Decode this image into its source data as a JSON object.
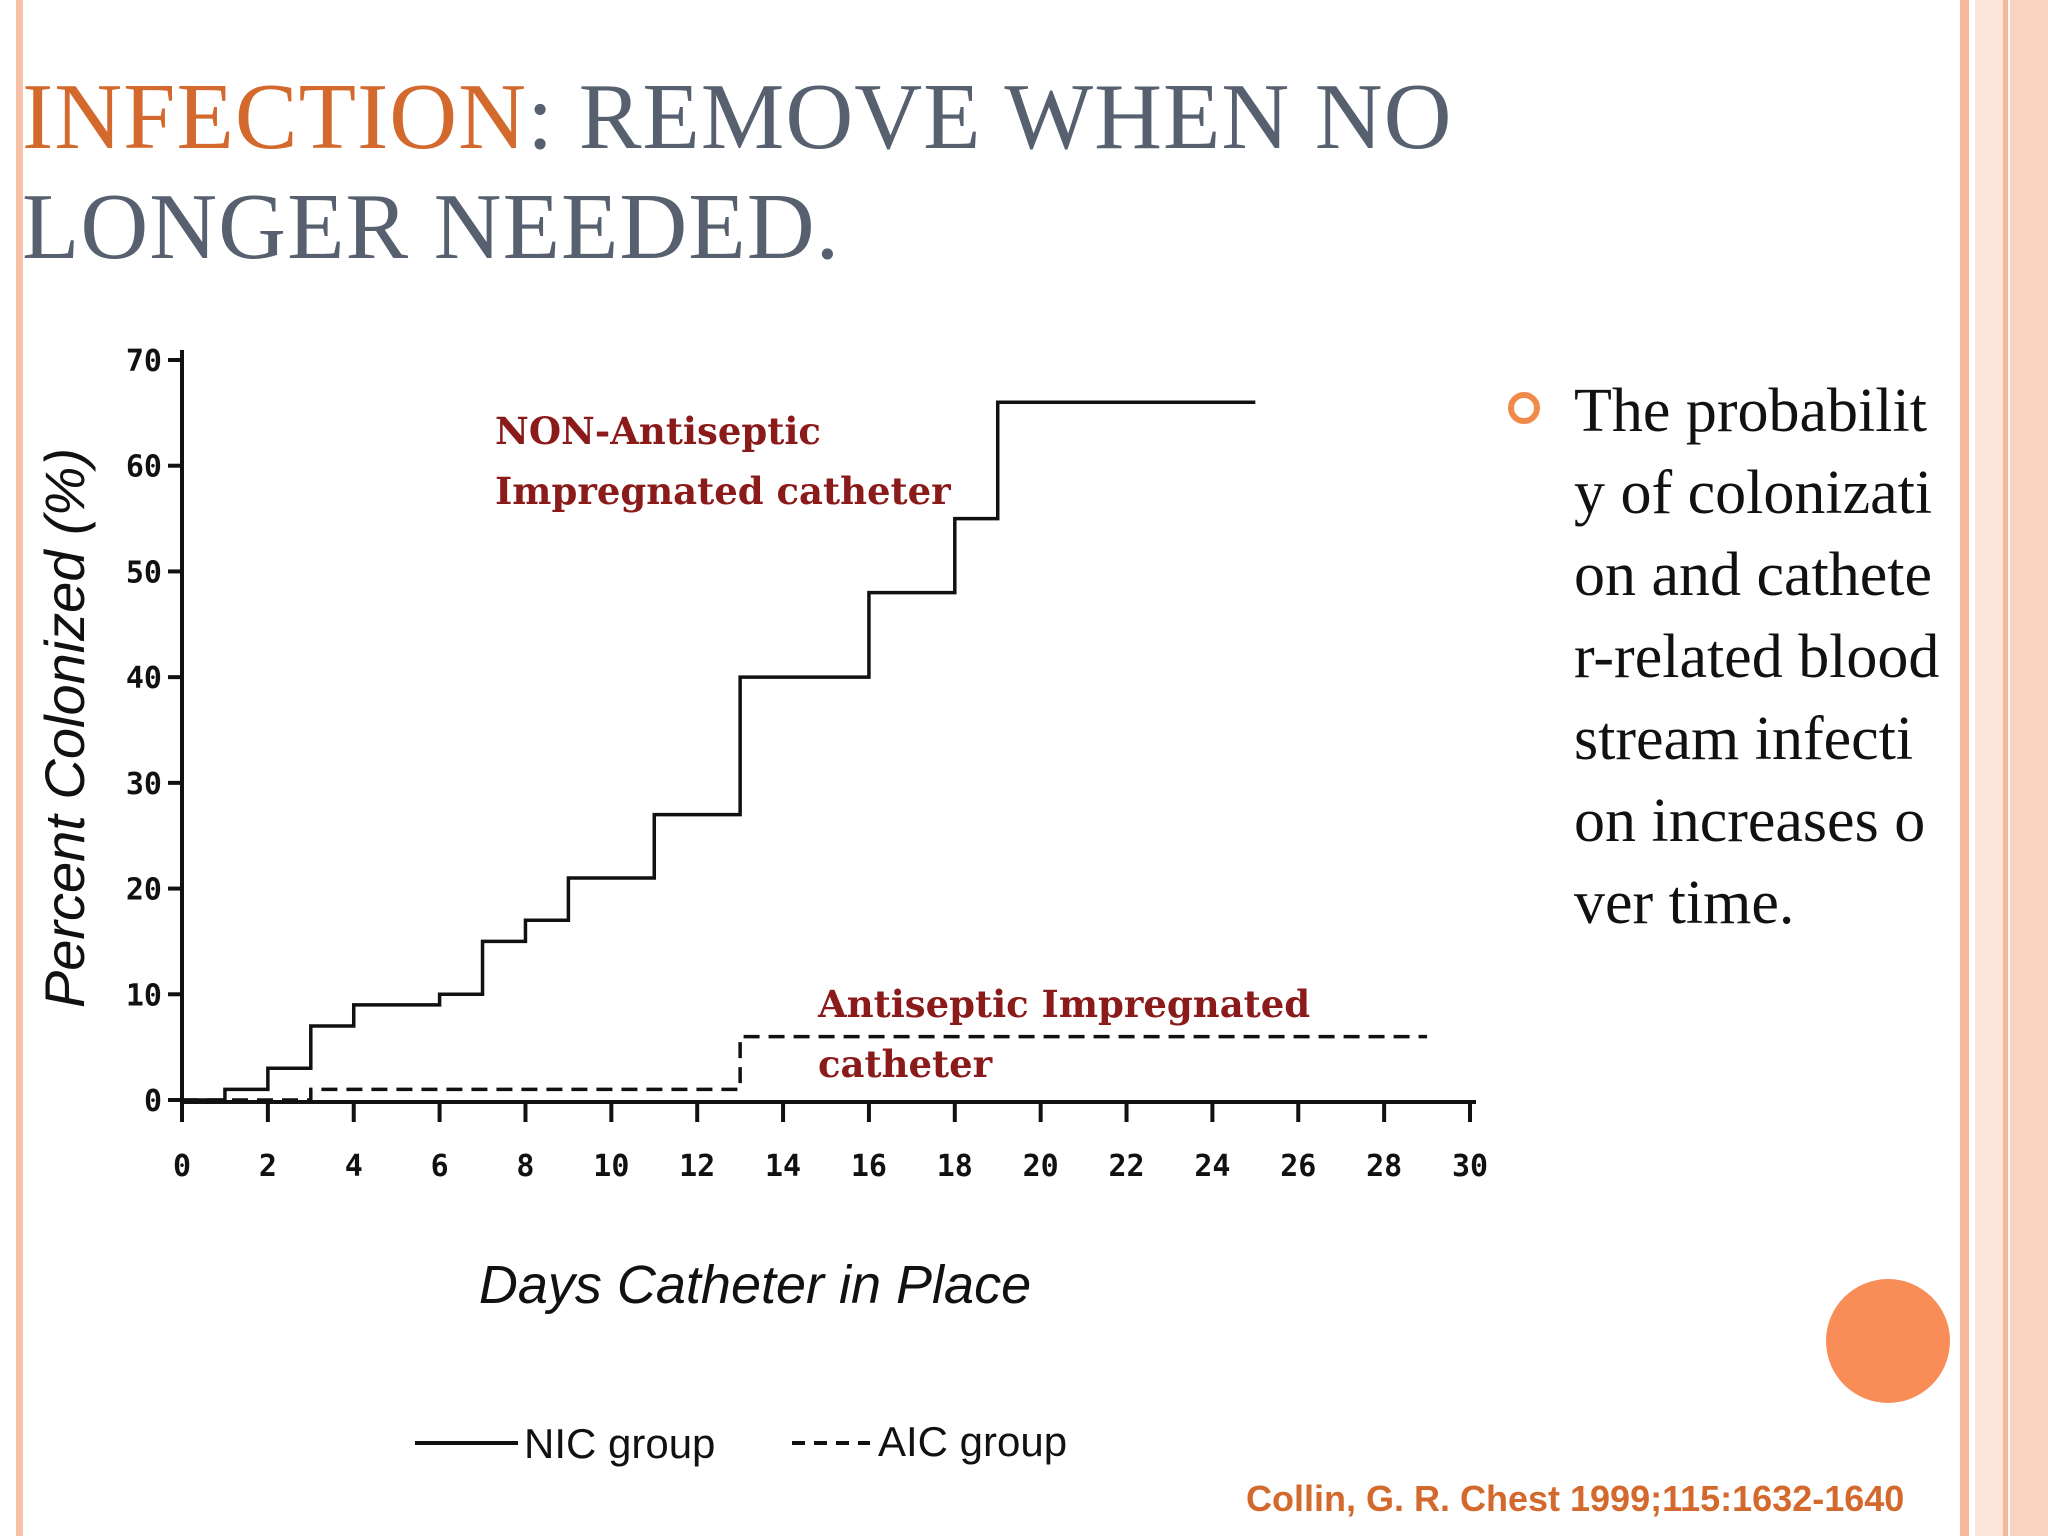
{
  "slide": {
    "title_accent": "INFECTION",
    "title_rest": ": REMOVE WHEN NO LONGER NEEDED.",
    "bullet_text": "The probability of colonization and catheter-related bloodstream infection increases over time.",
    "citation": "Collin, G. R. Chest 1999;115:1632-1640",
    "colors": {
      "accent": "#d3692c",
      "title_gray": "#56606f",
      "stripe_peach": "#f7b79a",
      "stripe_light": "#fde6dc",
      "bullet": "#f08a4b",
      "annotation": "#8b1a1a"
    }
  },
  "chart_data": {
    "type": "line",
    "xlabel": "Days Catheter in Place",
    "ylabel": "Percent Colonized (%)",
    "xlim": [
      0,
      30
    ],
    "ylim": [
      0,
      70
    ],
    "x_ticks": [
      "0",
      "2",
      "4",
      "6",
      "8",
      "10",
      "12",
      "14",
      "16",
      "18",
      "20",
      "22",
      "24",
      "26",
      "28",
      "30"
    ],
    "y_ticks": [
      "0",
      "10",
      "20",
      "30",
      "40",
      "50",
      "60",
      "70"
    ],
    "series": [
      {
        "name": "NIC group",
        "style": "solid",
        "points": [
          [
            0,
            0
          ],
          [
            1,
            1
          ],
          [
            2,
            3
          ],
          [
            3,
            7
          ],
          [
            4,
            9
          ],
          [
            6,
            10
          ],
          [
            7,
            15
          ],
          [
            8,
            17
          ],
          [
            9,
            21
          ],
          [
            11,
            27
          ],
          [
            13,
            40
          ],
          [
            16,
            48
          ],
          [
            18,
            55
          ],
          [
            19,
            66
          ],
          [
            25,
            66
          ]
        ]
      },
      {
        "name": "AIC group",
        "style": "dashed",
        "points": [
          [
            0,
            0
          ],
          [
            3,
            1
          ],
          [
            13,
            6
          ],
          [
            29,
            6
          ]
        ]
      }
    ],
    "annotations": [
      {
        "lines": [
          "NON-Antiseptic",
          "Impregnated catheter"
        ]
      },
      {
        "lines": [
          "Antiseptic Impregnated",
          "catheter"
        ]
      }
    ],
    "legend": {
      "position": "bottom",
      "entries": [
        "NIC group",
        "AIC group"
      ]
    }
  }
}
